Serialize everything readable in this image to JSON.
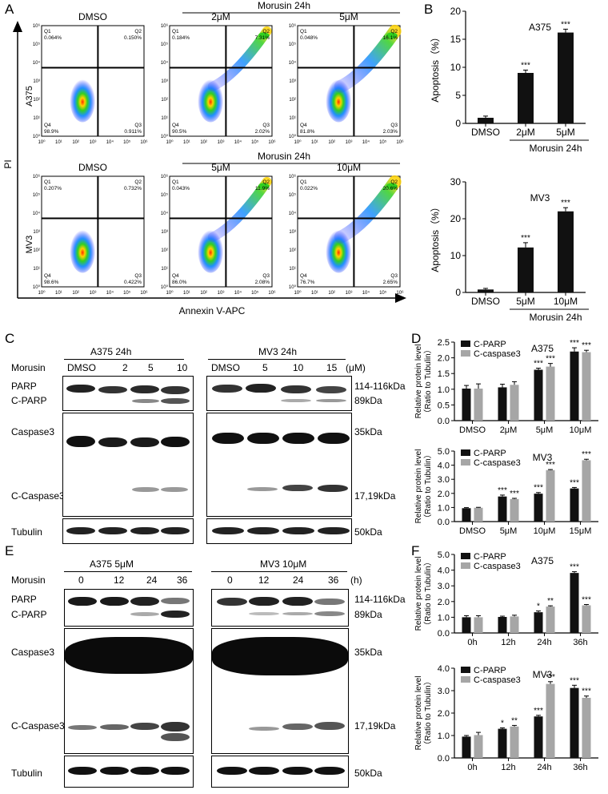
{
  "panels": {
    "A": "A",
    "B": "B",
    "C": "C",
    "D": "D",
    "E": "E",
    "F": "F"
  },
  "flow": {
    "y_axis_label": "PI",
    "x_axis_label": "Annexin V-APC",
    "a375": {
      "cell_line": "A375",
      "bracket": "Morusin 24h",
      "plots": [
        {
          "title": "DMSO",
          "q1": "0.064%",
          "q2": "0.150%",
          "q3": "0.911%",
          "q4": "98.9%"
        },
        {
          "title": "2μM",
          "q1": "0.184%",
          "q2": "7.31%",
          "q3": "2.02%",
          "q4": "90.5%"
        },
        {
          "title": "5μM",
          "q1": "0.048%",
          "q2": "16.1%",
          "q3": "2.03%",
          "q4": "81.8%"
        }
      ]
    },
    "mv3": {
      "cell_line": "MV3",
      "bracket": "Morusin 24h",
      "plots": [
        {
          "title": "DMSO",
          "q1": "0.207%",
          "q2": "0.732%",
          "q3": "0.422%",
          "q4": "98.6%"
        },
        {
          "title": "5μM",
          "q1": "0.043%",
          "q2": "11.9%",
          "q3": "2.08%",
          "q4": "86.0%"
        },
        {
          "title": "10μM",
          "q1": "0.022%",
          "q2": "20.6%",
          "q3": "2.65%",
          "q4": "76.7%"
        }
      ]
    },
    "quadrant_names": [
      "Q1",
      "Q2",
      "Q3",
      "Q4"
    ],
    "tick_labels": [
      "10⁰",
      "10¹",
      "10²",
      "10³",
      "10⁴",
      "10⁵",
      "10⁶"
    ]
  },
  "chart_data": [
    {
      "id": "B-top",
      "type": "bar",
      "title": "A375",
      "categories": [
        "DMSO",
        "2μM",
        "5μM"
      ],
      "series": [
        {
          "values": [
            1.0,
            9.0,
            16.2
          ],
          "errors": [
            0.3,
            0.5,
            0.6
          ],
          "sig": [
            "",
            "***",
            "***"
          ]
        }
      ],
      "ylabel": "Apoptosis（%）",
      "ylim": [
        0,
        20
      ],
      "yticks": [
        0,
        5,
        10,
        15,
        20
      ],
      "bracket": "Morusin 24h"
    },
    {
      "id": "B-bottom",
      "type": "bar",
      "title": "MV3",
      "categories": [
        "DMSO",
        "5μM",
        "10μM"
      ],
      "series": [
        {
          "values": [
            0.8,
            12.2,
            22.0
          ],
          "errors": [
            0.3,
            1.3,
            1.0
          ],
          "sig": [
            "",
            "***",
            "***"
          ]
        }
      ],
      "ylabel": "Apoptosis（%）",
      "ylim": [
        0,
        30
      ],
      "yticks": [
        0,
        10,
        20,
        30
      ],
      "bracket": "Morusin 24h"
    },
    {
      "id": "D-top",
      "type": "bar",
      "title": "A375",
      "categories": [
        "DMSO",
        "2μM",
        "5μM",
        "10μM"
      ],
      "series": [
        {
          "name": "C-PARP",
          "values": [
            1.02,
            1.06,
            1.62,
            2.2
          ],
          "errors": [
            0.1,
            0.1,
            0.05,
            0.12
          ],
          "sig": [
            "",
            "",
            "***",
            "***"
          ]
        },
        {
          "name": "C-caspase3",
          "values": [
            1.02,
            1.14,
            1.72,
            2.18
          ],
          "errors": [
            0.15,
            0.1,
            0.1,
            0.06
          ],
          "sig": [
            "",
            "",
            "***",
            "***"
          ]
        }
      ],
      "ylabel": "Relative protein level（Ratio to Tubulin）",
      "ylim": [
        0,
        2.5
      ],
      "yticks": [
        0.0,
        0.5,
        1.0,
        1.5,
        2.0,
        2.5
      ]
    },
    {
      "id": "D-bottom",
      "type": "bar",
      "title": "MV3",
      "categories": [
        "DMSO",
        "5μM",
        "10μM",
        "15μM"
      ],
      "series": [
        {
          "name": "C-PARP",
          "values": [
            0.95,
            1.78,
            1.98,
            2.35
          ],
          "errors": [
            0.04,
            0.1,
            0.08,
            0.07
          ],
          "sig": [
            "",
            "***",
            "***",
            "***"
          ]
        },
        {
          "name": "C-caspase3",
          "values": [
            0.98,
            1.6,
            3.65,
            4.35
          ],
          "errors": [
            0.03,
            0.05,
            0.04,
            0.07
          ],
          "sig": [
            "",
            "***",
            "***",
            "***"
          ]
        }
      ],
      "ylabel": "Relative protein level（Ratio to Tubulin）",
      "ylim": [
        0,
        5
      ],
      "yticks": [
        0.0,
        1.0,
        2.0,
        3.0,
        4.0,
        5.0
      ]
    },
    {
      "id": "F-top",
      "type": "bar",
      "title": "A375",
      "categories": [
        "0h",
        "12h",
        "24h",
        "36h"
      ],
      "series": [
        {
          "name": "C-PARP",
          "values": [
            1.0,
            1.02,
            1.32,
            3.82
          ],
          "errors": [
            0.1,
            0.05,
            0.08,
            0.08
          ],
          "sig": [
            "",
            "",
            "*",
            "***"
          ]
        },
        {
          "name": "C-caspase3",
          "values": [
            1.0,
            1.05,
            1.68,
            1.76
          ],
          "errors": [
            0.1,
            0.08,
            0.05,
            0.05
          ],
          "sig": [
            "",
            "",
            "**",
            "***"
          ]
        }
      ],
      "ylabel": "Relative protein level（Ratio to Tubulin）",
      "ylim": [
        0,
        5
      ],
      "yticks": [
        0.0,
        1.0,
        2.0,
        3.0,
        4.0,
        5.0
      ]
    },
    {
      "id": "F-bottom",
      "type": "bar",
      "title": "MV3",
      "categories": [
        "0h",
        "12h",
        "24h",
        "36h"
      ],
      "series": [
        {
          "name": "C-PARP",
          "values": [
            0.95,
            1.3,
            1.85,
            3.12
          ],
          "errors": [
            0.05,
            0.04,
            0.05,
            0.12
          ],
          "sig": [
            "",
            "*",
            "***",
            "***"
          ]
        },
        {
          "name": "C-caspase3",
          "values": [
            1.02,
            1.4,
            3.3,
            2.68
          ],
          "errors": [
            0.12,
            0.05,
            0.1,
            0.08
          ],
          "sig": [
            "",
            "**",
            "***",
            "***"
          ]
        }
      ],
      "ylabel": "Relative protein level（Ratio to Tubulin）",
      "ylim": [
        0,
        4
      ],
      "yticks": [
        0.0,
        1.0,
        2.0,
        3.0,
        4.0
      ]
    }
  ],
  "blot_c": {
    "morusin_label": "Morusin",
    "unit": "(μM)",
    "left_group": "A375 24h",
    "right_group": "MV3 24h",
    "left_lanes": [
      "DMSO",
      "2",
      "5",
      "10"
    ],
    "right_lanes": [
      "DMSO",
      "5",
      "10",
      "15"
    ],
    "row_labels": [
      "PARP",
      "C-PARP",
      "Caspase3",
      "C-Caspase3",
      "Tubulin"
    ],
    "size_labels": [
      "114-116kDa",
      "89kDa",
      "35kDa",
      "17,19kDa",
      "50kDa"
    ]
  },
  "blot_e": {
    "morusin_label": "Morusin",
    "unit": "(h)",
    "left_group": "A375  5μM",
    "right_group": "MV3  10μM",
    "left_lanes": [
      "0",
      "12",
      "24",
      "36"
    ],
    "right_lanes": [
      "0",
      "12",
      "24",
      "36"
    ],
    "row_labels": [
      "PARP",
      "C-PARP",
      "Caspase3",
      "C-Caspase3",
      "Tubulin"
    ],
    "size_labels": [
      "114-116kDa",
      "89kDa",
      "35kDa",
      "17,19kDa",
      "50kDa"
    ]
  },
  "colors": {
    "bar_dark": "#111111",
    "bar_light": "#a6a6a6"
  }
}
